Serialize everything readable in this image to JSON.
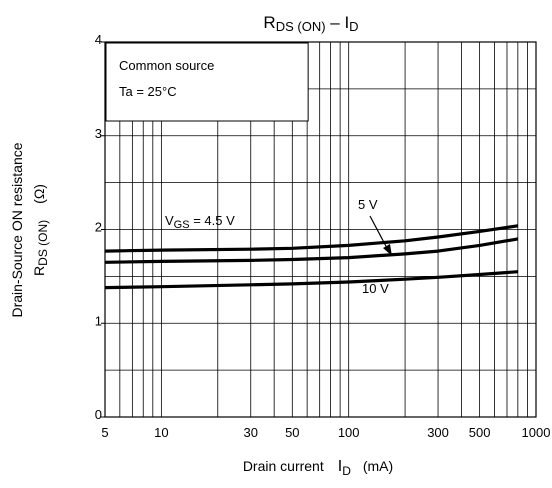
{
  "chart_data": {
    "type": "line",
    "title": "R",
    "title_sub": "DS (ON)",
    "title_mid": " – I",
    "title_sub2": "D",
    "x_scale": "log",
    "xlim": [
      5,
      1000
    ],
    "ylim": [
      0,
      4
    ],
    "x_ticks": [
      5,
      10,
      30,
      50,
      100,
      300,
      500,
      1000
    ],
    "x_tick_labels": [
      "5",
      "10",
      "30",
      "50",
      "100",
      "300",
      "500",
      "1000"
    ],
    "y_ticks": [
      0,
      1,
      2,
      3,
      4
    ],
    "y_tick_labels": [
      "0",
      "1",
      "2",
      "3",
      "4"
    ],
    "xlabel": "Drain current",
    "xlabel_sym": "I",
    "xlabel_sub": "D",
    "xlabel_unit": "(mA)",
    "ylabel_line1": "Drain-Source ON resistance",
    "ylabel_line2": "R",
    "ylabel_line2_sub": "DS (ON)",
    "ylabel_unit": "(Ω)",
    "grid": true,
    "conditions": [
      "Common source",
      "Ta = 25°C"
    ],
    "series": [
      {
        "label_main": "V",
        "label_sub": "GS",
        "label_rest": " = 4.5 V",
        "x": [
          5,
          10,
          30,
          50,
          100,
          200,
          300,
          500,
          800
        ],
        "y": [
          1.77,
          1.78,
          1.79,
          1.8,
          1.83,
          1.88,
          1.92,
          1.98,
          2.04
        ]
      },
      {
        "label_main": "5 V",
        "x": [
          5,
          10,
          30,
          50,
          100,
          200,
          300,
          500,
          800
        ],
        "y": [
          1.65,
          1.66,
          1.67,
          1.68,
          1.7,
          1.74,
          1.77,
          1.83,
          1.9
        ]
      },
      {
        "label_main": "10 V",
        "x": [
          5,
          10,
          30,
          50,
          100,
          200,
          300,
          500,
          800
        ],
        "y": [
          1.38,
          1.39,
          1.41,
          1.42,
          1.44,
          1.47,
          1.49,
          1.52,
          1.55
        ]
      }
    ]
  }
}
